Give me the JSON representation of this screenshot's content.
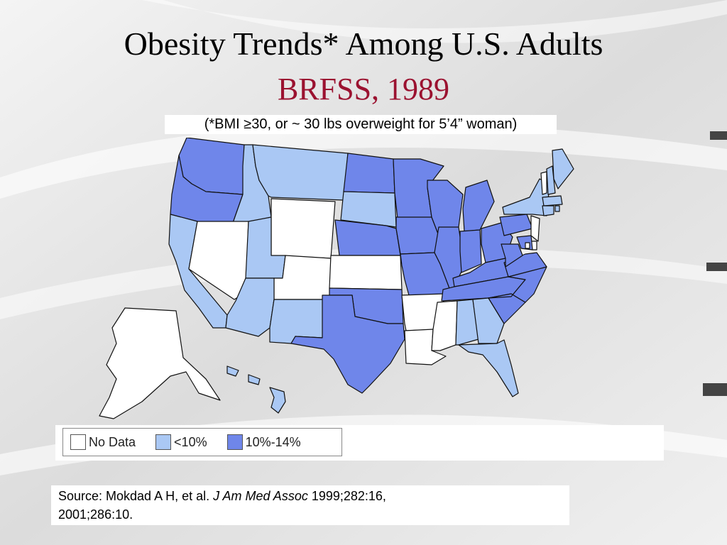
{
  "title": "Obesity Trends* Among U.S. Adults",
  "subtitle": "BRFSS, 1989",
  "footnote": "(*BMI ≥30, or ~ 30 lbs overweight for 5’4” woman)",
  "colors": {
    "title": "#000000",
    "subtitle": "#9b1230",
    "no_data": "#ffffff",
    "lt10": "#aac8f4",
    "p10_14": "#6f86ea",
    "border": "#111111"
  },
  "legend": {
    "items": [
      {
        "label": "No Data",
        "category": "no_data"
      },
      {
        "label": "<10%",
        "category": "lt10"
      },
      {
        "label": "10%-14%",
        "category": "p10_14"
      }
    ]
  },
  "source": {
    "prefix": "Source: Mokdad A H, et al. ",
    "journal": "J Am Med Assoc",
    "suffix": " 1999;282:16,",
    "line2": "2001;286:10."
  },
  "states": [
    {
      "name": "WA",
      "category": "p10_14"
    },
    {
      "name": "OR",
      "category": "p10_14"
    },
    {
      "name": "CA",
      "category": "lt10"
    },
    {
      "name": "ID",
      "category": "lt10"
    },
    {
      "name": "NV",
      "category": "no_data"
    },
    {
      "name": "MT",
      "category": "lt10"
    },
    {
      "name": "WY",
      "category": "no_data"
    },
    {
      "name": "UT",
      "category": "lt10"
    },
    {
      "name": "CO",
      "category": "no_data"
    },
    {
      "name": "AZ",
      "category": "lt10"
    },
    {
      "name": "NM",
      "category": "lt10"
    },
    {
      "name": "ND",
      "category": "p10_14"
    },
    {
      "name": "SD",
      "category": "lt10"
    },
    {
      "name": "NE",
      "category": "p10_14"
    },
    {
      "name": "KS",
      "category": "no_data"
    },
    {
      "name": "OK",
      "category": "p10_14"
    },
    {
      "name": "TX",
      "category": "p10_14"
    },
    {
      "name": "MN",
      "category": "p10_14"
    },
    {
      "name": "IA",
      "category": "p10_14"
    },
    {
      "name": "MO",
      "category": "p10_14"
    },
    {
      "name": "AR",
      "category": "no_data"
    },
    {
      "name": "LA",
      "category": "no_data"
    },
    {
      "name": "WI",
      "category": "p10_14"
    },
    {
      "name": "IL",
      "category": "p10_14"
    },
    {
      "name": "MI",
      "category": "p10_14"
    },
    {
      "name": "IN",
      "category": "p10_14"
    },
    {
      "name": "OH",
      "category": "p10_14"
    },
    {
      "name": "KY",
      "category": "p10_14"
    },
    {
      "name": "TN",
      "category": "p10_14"
    },
    {
      "name": "MS",
      "category": "no_data"
    },
    {
      "name": "AL",
      "category": "lt10"
    },
    {
      "name": "GA",
      "category": "lt10"
    },
    {
      "name": "FL",
      "category": "lt10"
    },
    {
      "name": "SC",
      "category": "p10_14"
    },
    {
      "name": "NC",
      "category": "p10_14"
    },
    {
      "name": "VA",
      "category": "p10_14"
    },
    {
      "name": "WV",
      "category": "p10_14"
    },
    {
      "name": "PA",
      "category": "p10_14"
    },
    {
      "name": "NY",
      "category": "lt10"
    },
    {
      "name": "VT",
      "category": "no_data"
    },
    {
      "name": "NH",
      "category": "lt10"
    },
    {
      "name": "ME",
      "category": "lt10"
    },
    {
      "name": "MA",
      "category": "lt10"
    },
    {
      "name": "CT",
      "category": "lt10"
    },
    {
      "name": "RI",
      "category": "lt10"
    },
    {
      "name": "NJ",
      "category": "no_data"
    },
    {
      "name": "DE",
      "category": "no_data"
    },
    {
      "name": "MD",
      "category": "p10_14"
    },
    {
      "name": "DC",
      "category": "no_data"
    },
    {
      "name": "AK",
      "category": "no_data"
    },
    {
      "name": "HI",
      "category": "lt10"
    }
  ]
}
